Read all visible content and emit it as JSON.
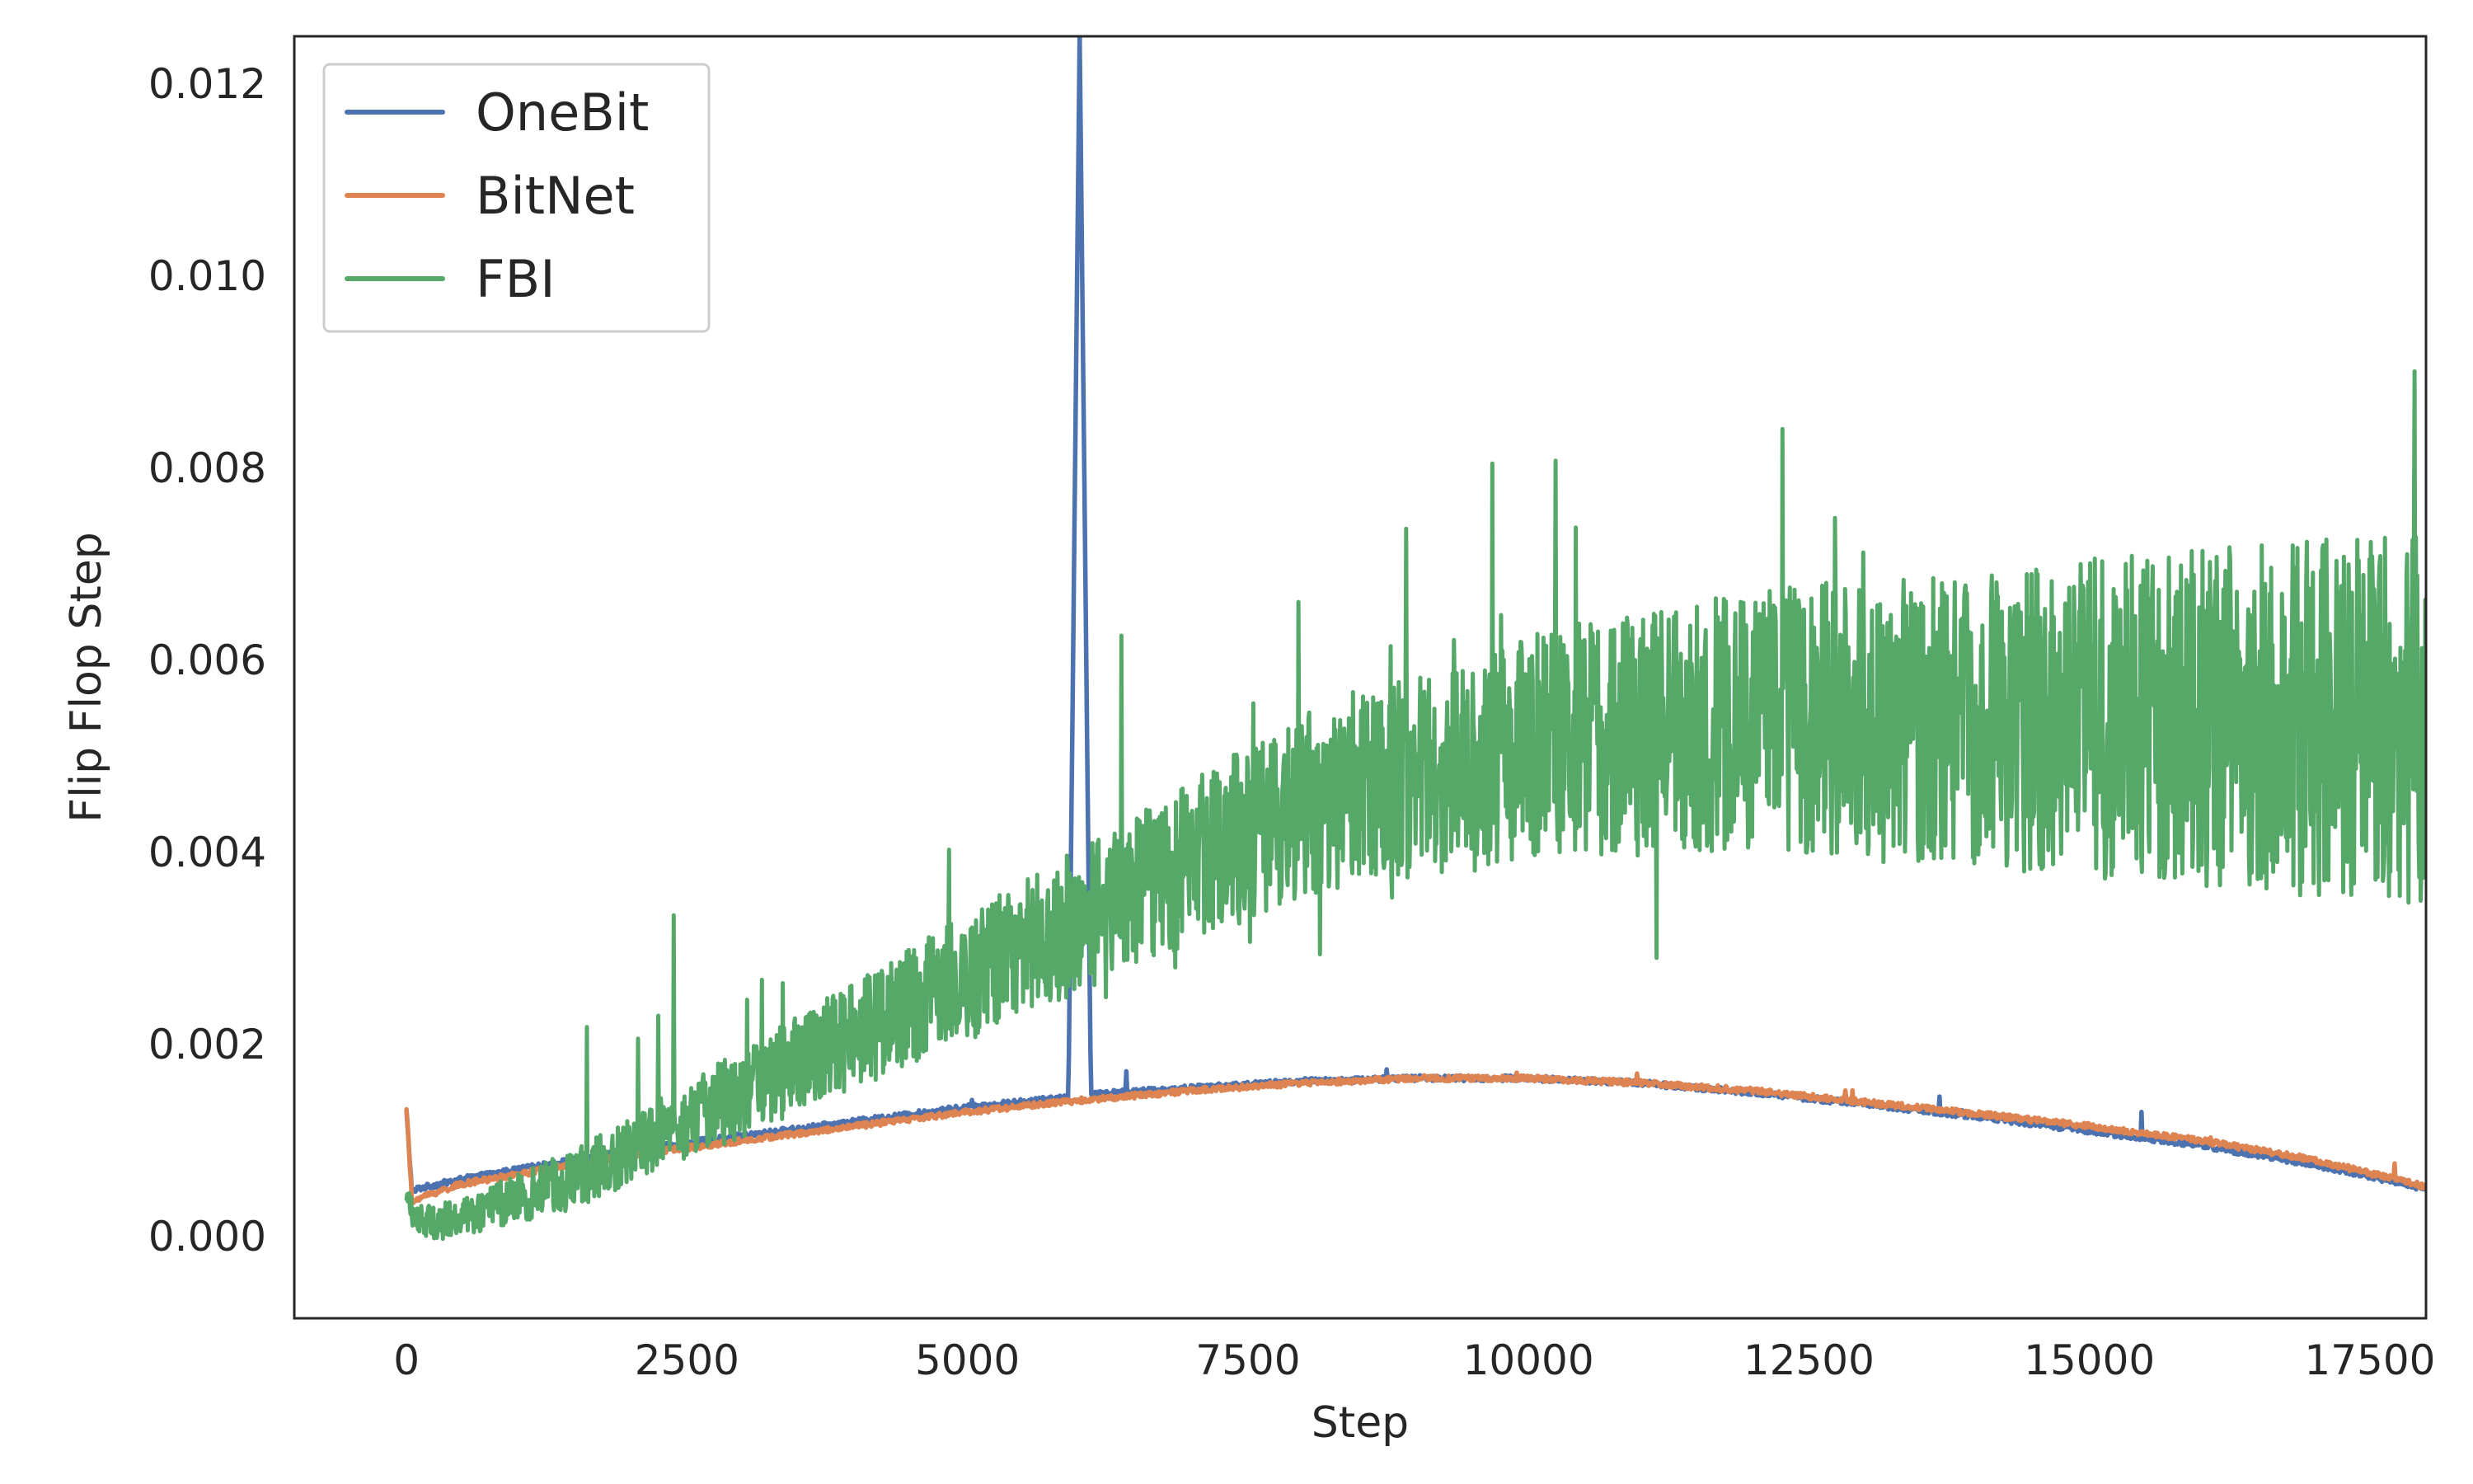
{
  "chart_data": {
    "type": "line",
    "title": "",
    "xlabel": "Step",
    "ylabel": "Flip Flop Step",
    "xlim": [
      -1000,
      18000
    ],
    "ylim": [
      -0.00085,
      0.0125
    ],
    "x_ticks": [
      0,
      2500,
      5000,
      7500,
      10000,
      12500,
      15000,
      17500
    ],
    "x_tick_labels": [
      "0",
      "2500",
      "5000",
      "7500",
      "10000",
      "12500",
      "15000",
      "17500"
    ],
    "y_ticks": [
      0.0,
      0.002,
      0.004,
      0.006,
      0.008,
      0.01,
      0.012
    ],
    "y_tick_labels": [
      "0.000",
      "0.002",
      "0.004",
      "0.006",
      "0.008",
      "0.010",
      "0.012"
    ],
    "grid": false,
    "legend_position": "top-left",
    "series": [
      {
        "name": "OneBit",
        "color": "#4c72b0",
        "x": [
          0,
          50,
          100,
          500,
          1000,
          1500,
          2000,
          3000,
          4000,
          5000,
          5900,
          6000,
          6100,
          7000,
          8000,
          9000,
          10000,
          11000,
          12000,
          13000,
          14000,
          15000,
          16000,
          17000,
          18000
        ],
        "y": [
          0.0013,
          0.00045,
          0.0005,
          0.0006,
          0.0007,
          0.0008,
          0.0009,
          0.00105,
          0.0012,
          0.00135,
          0.00145,
          0.0125,
          0.00148,
          0.00155,
          0.00162,
          0.00165,
          0.00165,
          0.0016,
          0.0015,
          0.00138,
          0.00125,
          0.0011,
          0.00095,
          0.00075,
          0.0005
        ]
      },
      {
        "name": "BitNet",
        "color": "#dd8452",
        "x": [
          0,
          50,
          100,
          500,
          1000,
          1500,
          2000,
          3000,
          4000,
          5000,
          6000,
          7000,
          8000,
          9000,
          10000,
          11000,
          12000,
          13000,
          14000,
          15000,
          16000,
          17000,
          18000
        ],
        "y": [
          0.00135,
          0.00035,
          0.0004,
          0.00055,
          0.00065,
          0.00075,
          0.00085,
          0.001,
          0.00115,
          0.0013,
          0.00142,
          0.00152,
          0.0016,
          0.00165,
          0.00165,
          0.0016,
          0.00152,
          0.0014,
          0.00128,
          0.00115,
          0.001,
          0.0008,
          0.00052
        ]
      },
      {
        "name": "FBI",
        "color": "#55a868",
        "x": [
          0,
          100,
          300,
          500,
          1000,
          1500,
          2000,
          2500,
          3000,
          3500,
          4000,
          4500,
          5000,
          5500,
          6000,
          6500,
          7000,
          7500,
          8000,
          8500,
          9000,
          9500,
          10000,
          10500,
          11000,
          11500,
          12000,
          12500,
          13000,
          13500,
          14000,
          14500,
          15000,
          15500,
          16000,
          16500,
          17000,
          17500,
          17800,
          18000
        ],
        "y": [
          0.0004,
          0.00015,
          0.00015,
          0.0002,
          0.0004,
          0.0006,
          0.0009,
          0.0012,
          0.0015,
          0.0018,
          0.0021,
          0.0024,
          0.0027,
          0.003,
          0.0033,
          0.0036,
          0.0039,
          0.0042,
          0.0045,
          0.0047,
          0.0048,
          0.0049,
          0.0051,
          0.0052,
          0.0052,
          0.0053,
          0.0054,
          0.0054,
          0.0054,
          0.0054,
          0.0054,
          0.0054,
          0.0054,
          0.0054,
          0.0054,
          0.0054,
          0.0054,
          0.0054,
          0.0054,
          0.0054
        ]
      }
    ]
  }
}
